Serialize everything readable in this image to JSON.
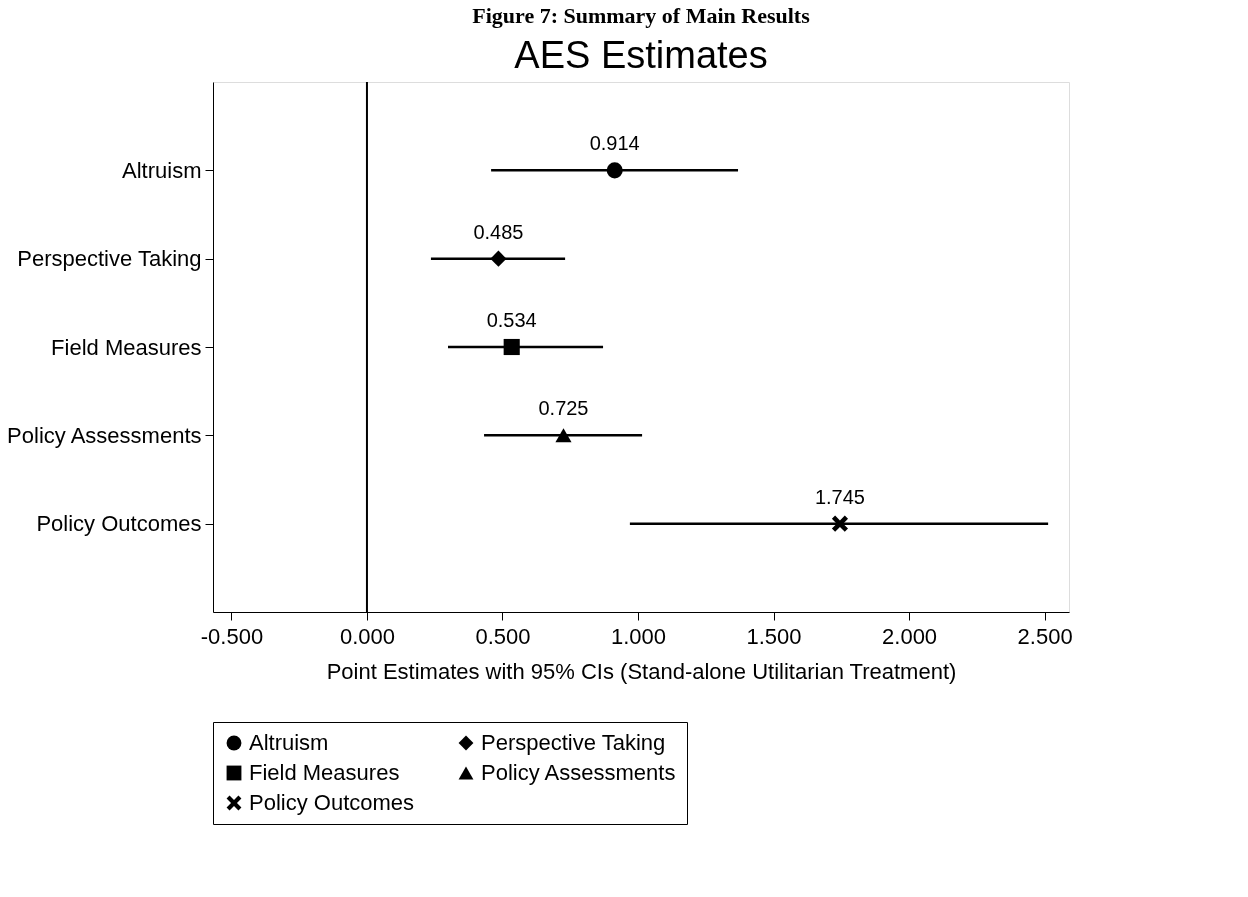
{
  "chart_data": {
    "type": "scatter",
    "title": "Figure 7: Summary of Main Results",
    "subtitle": "AES Estimates",
    "orientation": "horizontal",
    "categories": [
      "Altruism",
      "Perspective Taking",
      "Field Measures",
      "Policy Assessments",
      "Policy Outcomes"
    ],
    "xlabel": "Point Estimates with 95% CIs (Stand-alone Utilitarian Treatment)",
    "series": [
      {
        "name": "Altruism",
        "color": "#000000",
        "marker": "circle",
        "values": [
          0.914,
          null,
          null,
          null,
          null
        ],
        "errors": [
          [
            0.458,
            1.369
          ],
          null,
          null,
          null,
          null
        ]
      },
      {
        "name": "Perspective Taking",
        "color": "#000000",
        "marker": "diamond",
        "values": [
          null,
          0.485,
          null,
          null,
          null
        ],
        "errors": [
          null,
          [
            0.236,
            0.731
          ],
          null,
          null,
          null
        ]
      },
      {
        "name": "Field Measures",
        "color": "#000000",
        "marker": "square",
        "values": [
          null,
          null,
          0.534,
          null,
          null
        ],
        "errors": [
          null,
          null,
          [
            0.299,
            0.871
          ],
          null,
          null
        ]
      },
      {
        "name": "Policy Assessments",
        "color": "#000000",
        "marker": "triangle",
        "values": [
          null,
          null,
          null,
          0.725,
          null
        ],
        "errors": [
          null,
          null,
          null,
          [
            0.432,
            1.015
          ],
          null
        ]
      },
      {
        "name": "Policy Outcomes",
        "color": "#000000",
        "marker": "cross",
        "values": [
          null,
          null,
          null,
          null,
          1.745
        ],
        "errors": [
          null,
          null,
          null,
          null,
          [
            0.97,
            2.513
          ]
        ]
      }
    ],
    "xlim": [
      -0.568,
      2.59
    ],
    "xticks": [
      {
        "value": -0.5,
        "label": "-0.500"
      },
      {
        "value": 0,
        "label": "0.000"
      },
      {
        "value": 0.5,
        "label": "0.500"
      },
      {
        "value": 1,
        "label": "1.000"
      },
      {
        "value": 1.5,
        "label": "1.500"
      },
      {
        "value": 2,
        "label": "2.000"
      },
      {
        "value": 2.5,
        "label": "2.500"
      }
    ],
    "ref_lines": [
      {
        "axis": "x",
        "value": 0,
        "label": null
      }
    ],
    "data_labels": true,
    "grid": false,
    "legend": "bottom"
  }
}
